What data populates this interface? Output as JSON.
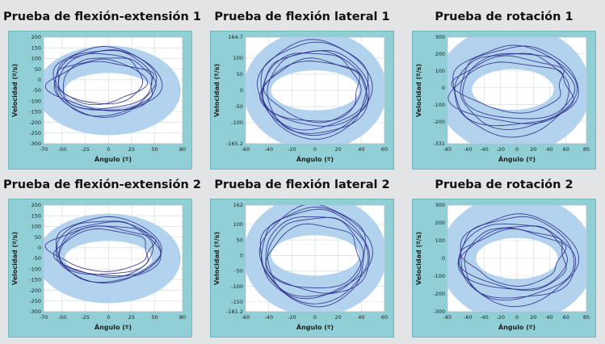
{
  "colors": {
    "page_bg": "#e3e4e6",
    "frame": "#8fcfd5",
    "frame_border": "#6eb7bf",
    "plot_bg": "#ffffff",
    "grid": "#cfd8df",
    "band": "#aed0ec",
    "trace": "#2e2e8c",
    "axis_text": "#222222"
  },
  "chart_data": [
    {
      "type": "scatter",
      "title": "Prueba de flexión-extensión 1",
      "xlabel": "Ángulo (º)",
      "ylabel": "Velocidad (º/s)",
      "xlim": [
        -70,
        80
      ],
      "ylim": [
        -300,
        200
      ],
      "xticks": [
        -70,
        -50,
        -25,
        0,
        25,
        50,
        80
      ],
      "yticks": [
        200,
        150,
        100,
        50,
        0,
        -50,
        -100,
        -150,
        -200,
        -250,
        -300
      ],
      "grid": true,
      "band": {
        "cx": 0,
        "cy": -50,
        "rx_outer": 78,
        "ry_outer": 210,
        "rx_inner": 47,
        "ry_inner": 82
      },
      "loops": [
        {
          "cx": -5,
          "cy": -10,
          "rx": 55,
          "ry": 160,
          "ph": 0.0,
          "amp": 0.05
        },
        {
          "cx": -3,
          "cy": -15,
          "rx": 58,
          "ry": 150,
          "ph": 1.1,
          "amp": 0.07
        },
        {
          "cx": -6,
          "cy": 0,
          "rx": 52,
          "ry": 140,
          "ph": 2.3,
          "amp": 0.06
        },
        {
          "cx": 0,
          "cy": -20,
          "rx": 50,
          "ry": 130,
          "ph": 3.1,
          "amp": 0.08
        },
        {
          "cx": -8,
          "cy": 5,
          "rx": 45,
          "ry": 120,
          "ph": 4.0,
          "amp": 0.05
        },
        {
          "cx": -4,
          "cy": -30,
          "rx": 57,
          "ry": 110,
          "ph": 5.2,
          "amp": 0.09
        },
        {
          "cx": -10,
          "cy": -10,
          "rx": 48,
          "ry": 100,
          "ph": 0.7,
          "amp": 0.1
        }
      ]
    },
    {
      "type": "scatter",
      "title": "Prueba de flexión lateral 1",
      "xlabel": "Ángulo (º)",
      "ylabel": "Velocidad (º/s)",
      "xlim": [
        -60,
        60
      ],
      "ylim": [
        -165.2,
        164.7
      ],
      "xticks": [
        -60,
        -40,
        -20,
        0,
        20,
        40,
        60
      ],
      "yticks": [
        164.7,
        100,
        50,
        0,
        -50,
        -100,
        -165.2
      ],
      "grid": true,
      "band": {
        "cx": 0,
        "cy": 0,
        "rx_outer": 62,
        "ry_outer": 185,
        "rx_inner": 38,
        "ry_inner": 62
      },
      "loops": [
        {
          "cx": 0,
          "cy": 5,
          "rx": 48,
          "ry": 140,
          "ph": 0.3,
          "amp": 0.04
        },
        {
          "cx": -2,
          "cy": 0,
          "rx": 45,
          "ry": 120,
          "ph": 1.4,
          "amp": 0.06
        },
        {
          "cx": 2,
          "cy": -5,
          "rx": 44,
          "ry": 130,
          "ph": 2.2,
          "amp": 0.05
        },
        {
          "cx": -3,
          "cy": 10,
          "rx": 42,
          "ry": 110,
          "ph": 3.5,
          "amp": 0.07
        },
        {
          "cx": 1,
          "cy": -10,
          "rx": 46,
          "ry": 100,
          "ph": 4.6,
          "amp": 0.05
        },
        {
          "cx": 0,
          "cy": 0,
          "rx": 40,
          "ry": 95,
          "ph": 5.5,
          "amp": 0.08
        },
        {
          "cx": -1,
          "cy": 3,
          "rx": 47,
          "ry": 150,
          "ph": 6.0,
          "amp": 0.04
        }
      ]
    },
    {
      "type": "scatter",
      "title": "Prueba de rotación 1",
      "xlabel": "Ángulo (º)",
      "ylabel": "Velocidad (º/s)",
      "xlim": [
        -85,
        85
      ],
      "ylim": [
        -331,
        300
      ],
      "xticks": [
        -85,
        -60,
        -40,
        -20,
        0,
        20,
        40,
        60,
        85
      ],
      "yticks": [
        300,
        200,
        100,
        0,
        -100,
        -200,
        -331
      ],
      "grid": true,
      "band": {
        "cx": -5,
        "cy": -10,
        "rx_outer": 95,
        "ry_outer": 380,
        "rx_inner": 50,
        "ry_inner": 120
      },
      "loops": [
        {
          "cx": -5,
          "cy": -20,
          "rx": 75,
          "ry": 260,
          "ph": 0.2,
          "amp": 0.06
        },
        {
          "cx": 0,
          "cy": 0,
          "rx": 72,
          "ry": 240,
          "ph": 1.3,
          "amp": 0.07
        },
        {
          "cx": -8,
          "cy": -10,
          "rx": 70,
          "ry": 220,
          "ph": 2.5,
          "amp": 0.08
        },
        {
          "cx": 2,
          "cy": 10,
          "rx": 68,
          "ry": 200,
          "ph": 3.6,
          "amp": 0.06
        },
        {
          "cx": -3,
          "cy": -30,
          "rx": 74,
          "ry": 180,
          "ph": 4.4,
          "amp": 0.09
        },
        {
          "cx": -5,
          "cy": 20,
          "rx": 66,
          "ry": 160,
          "ph": 5.3,
          "amp": 0.1
        }
      ]
    },
    {
      "type": "scatter",
      "title": "Prueba de flexión-extensión 2",
      "xlabel": "Ángulo (º)",
      "ylabel": "Velocidad (º/s)",
      "xlim": [
        -70,
        80
      ],
      "ylim": [
        -300,
        200
      ],
      "xticks": [
        -70,
        -50,
        -25,
        0,
        25,
        50,
        80
      ],
      "yticks": [
        200,
        150,
        100,
        50,
        0,
        -50,
        -100,
        -150,
        -200,
        -250,
        -300
      ],
      "grid": true,
      "band": {
        "cx": 0,
        "cy": -50,
        "rx_outer": 78,
        "ry_outer": 210,
        "rx_inner": 47,
        "ry_inner": 82
      },
      "loops": [
        {
          "cx": -2,
          "cy": -10,
          "rx": 57,
          "ry": 150,
          "ph": 0.5,
          "amp": 0.05
        },
        {
          "cx": 0,
          "cy": -20,
          "rx": 55,
          "ry": 140,
          "ph": 1.6,
          "amp": 0.06
        },
        {
          "cx": -5,
          "cy": 0,
          "rx": 52,
          "ry": 130,
          "ph": 2.7,
          "amp": 0.07
        },
        {
          "cx": 2,
          "cy": -15,
          "rx": 54,
          "ry": 120,
          "ph": 3.8,
          "amp": 0.06
        },
        {
          "cx": -4,
          "cy": -25,
          "rx": 50,
          "ry": 110,
          "ph": 4.9,
          "amp": 0.08
        },
        {
          "cx": -6,
          "cy": -5,
          "rx": 56,
          "ry": 100,
          "ph": 5.8,
          "amp": 0.09
        }
      ]
    },
    {
      "type": "scatter",
      "title": "Prueba de flexión lateral 2",
      "xlabel": "Ángulo (º)",
      "ylabel": "Velocidad (º/s)",
      "xlim": [
        -60,
        60
      ],
      "ylim": [
        -181.2,
        162
      ],
      "xticks": [
        -60,
        -40,
        -20,
        0,
        20,
        40,
        60
      ],
      "yticks": [
        162,
        100,
        50,
        0,
        -50,
        -100,
        -150,
        -181.2
      ],
      "grid": true,
      "band": {
        "cx": 0,
        "cy": 0,
        "rx_outer": 62,
        "ry_outer": 195,
        "rx_inner": 38,
        "ry_inner": 65
      },
      "loops": [
        {
          "cx": 0,
          "cy": 0,
          "rx": 48,
          "ry": 150,
          "ph": 0.1,
          "amp": 0.05
        },
        {
          "cx": -2,
          "cy": 5,
          "rx": 46,
          "ry": 140,
          "ph": 1.2,
          "amp": 0.06
        },
        {
          "cx": 2,
          "cy": -5,
          "rx": 44,
          "ry": 130,
          "ph": 2.4,
          "amp": 0.07
        },
        {
          "cx": -1,
          "cy": 10,
          "rx": 42,
          "ry": 120,
          "ph": 3.3,
          "amp": 0.06
        },
        {
          "cx": 1,
          "cy": -10,
          "rx": 40,
          "ry": 110,
          "ph": 4.5,
          "amp": 0.08
        },
        {
          "cx": 0,
          "cy": 0,
          "rx": 45,
          "ry": 160,
          "ph": 5.6,
          "amp": 0.05
        }
      ]
    },
    {
      "type": "scatter",
      "title": "Prueba de rotación 2",
      "xlabel": "Ángulo (º)",
      "ylabel": "Velocidad (º/s)",
      "xlim": [
        -85,
        85
      ],
      "ylim": [
        -300,
        300
      ],
      "xticks": [
        -85,
        -60,
        -40,
        -20,
        0,
        20,
        40,
        60,
        85
      ],
      "yticks": [
        300,
        200,
        100,
        0,
        -100,
        -200,
        -300
      ],
      "grid": true,
      "band": {
        "cx": 0,
        "cy": 0,
        "rx_outer": 95,
        "ry_outer": 360,
        "rx_inner": 50,
        "ry_inner": 115
      },
      "loops": [
        {
          "cx": 0,
          "cy": -10,
          "rx": 72,
          "ry": 250,
          "ph": 0.4,
          "amp": 0.06
        },
        {
          "cx": -3,
          "cy": 0,
          "rx": 70,
          "ry": 230,
          "ph": 1.5,
          "amp": 0.07
        },
        {
          "cx": 2,
          "cy": -20,
          "rx": 68,
          "ry": 210,
          "ph": 2.6,
          "amp": 0.08
        },
        {
          "cx": -5,
          "cy": 10,
          "rx": 66,
          "ry": 190,
          "ph": 3.7,
          "amp": 0.06
        },
        {
          "cx": 0,
          "cy": -5,
          "rx": 64,
          "ry": 170,
          "ph": 4.8,
          "amp": 0.09
        },
        {
          "cx": -2,
          "cy": 5,
          "rx": 60,
          "ry": 150,
          "ph": 5.9,
          "amp": 0.1
        }
      ]
    }
  ]
}
